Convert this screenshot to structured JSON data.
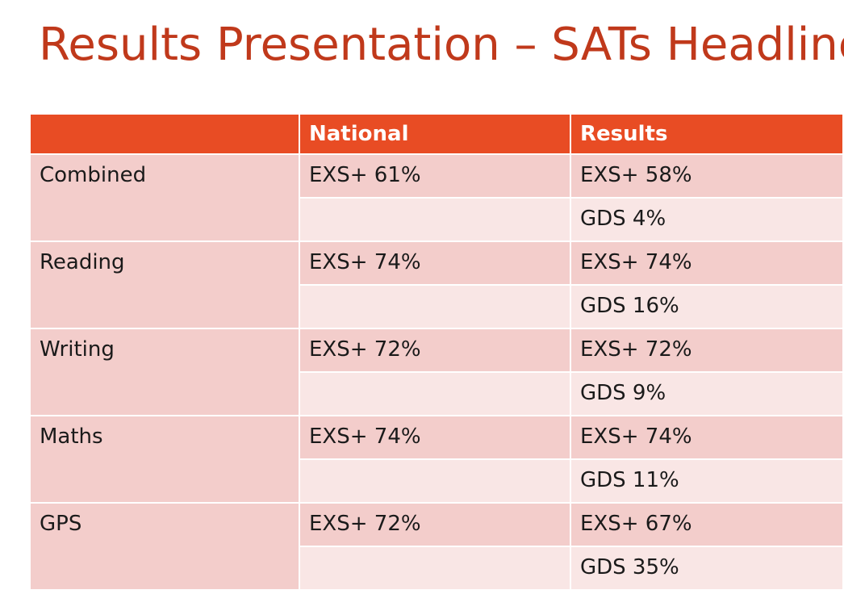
{
  "slide": {
    "title": "Results Presentation – SATs Headlines"
  },
  "table": {
    "headers": [
      "",
      "National",
      "Results"
    ],
    "rows": [
      {
        "subject": "Combined",
        "national": "EXS+ 61%",
        "results_exs": "EXS+ 58%",
        "results_gds": "GDS 4%"
      },
      {
        "subject": "Reading",
        "national": "EXS+ 74%",
        "results_exs": "EXS+ 74%",
        "results_gds": "GDS 16%"
      },
      {
        "subject": "Writing",
        "national": "EXS+ 72%",
        "results_exs": "EXS+ 72%",
        "results_gds": "GDS 9%"
      },
      {
        "subject": "Maths",
        "national": "EXS+ 74%",
        "results_exs": "EXS+ 74%",
        "results_gds": "GDS 11%"
      },
      {
        "subject": "GPS",
        "national": "EXS+ 72%",
        "results_exs": "EXS+ 67%",
        "results_gds": "GDS 35%"
      }
    ]
  },
  "colors": {
    "title": "#c0391b",
    "header_fill": "#e84c24",
    "row_dark": "#f3cdcb",
    "row_light": "#f9e6e5"
  }
}
